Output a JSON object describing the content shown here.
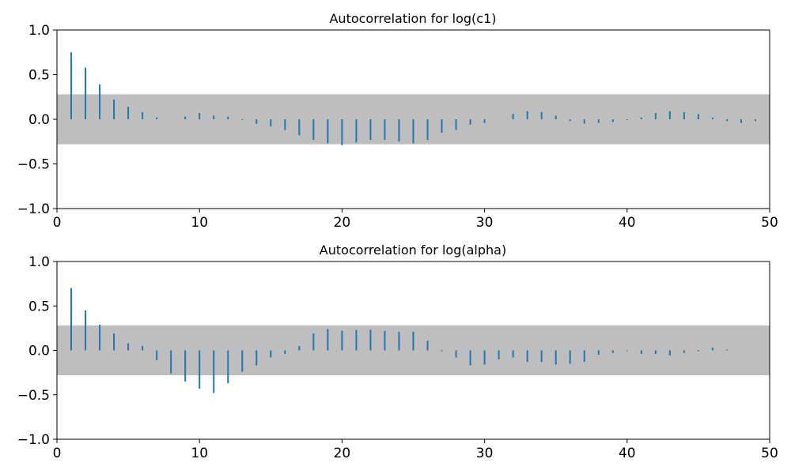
{
  "chart_data": [
    {
      "type": "bar",
      "title": "Autocorrelation for log(c1)",
      "xlabel": "",
      "ylabel": "",
      "xlim": [
        0,
        50
      ],
      "ylim": [
        -1.0,
        1.0
      ],
      "xticks": [
        0,
        10,
        20,
        30,
        40,
        50
      ],
      "xtick_labels": [
        "0",
        "10",
        "20",
        "30",
        "40",
        "50"
      ],
      "yticks": [
        1.0,
        0.5,
        0.0,
        -0.5,
        -1.0
      ],
      "ytick_labels": [
        "1.0",
        "0.5",
        "0.0",
        "−0.5",
        "−1.0"
      ],
      "confidence_band": [
        -0.28,
        0.28
      ],
      "band_color": "#bebebe",
      "bar_color": "#1f77b4",
      "grid": false,
      "x": [
        1,
        2,
        3,
        4,
        5,
        6,
        7,
        8,
        9,
        10,
        11,
        12,
        13,
        14,
        15,
        16,
        17,
        18,
        19,
        20,
        21,
        22,
        23,
        24,
        25,
        26,
        27,
        28,
        29,
        30,
        31,
        32,
        33,
        34,
        35,
        36,
        37,
        38,
        39,
        40,
        41,
        42,
        43,
        44,
        45,
        46,
        47,
        48,
        49
      ],
      "values": [
        0.75,
        0.58,
        0.39,
        0.22,
        0.14,
        0.08,
        0.02,
        0.0,
        0.03,
        0.07,
        0.04,
        0.03,
        -0.01,
        -0.05,
        -0.08,
        -0.12,
        -0.18,
        -0.23,
        -0.27,
        -0.29,
        -0.26,
        -0.23,
        -0.23,
        -0.25,
        -0.27,
        -0.23,
        -0.15,
        -0.12,
        -0.06,
        -0.04,
        0.0,
        0.06,
        0.09,
        0.08,
        0.04,
        -0.02,
        -0.05,
        -0.04,
        -0.03,
        -0.01,
        0.02,
        0.07,
        0.09,
        0.08,
        0.06,
        0.02,
        -0.02,
        -0.04,
        -0.02
      ]
    },
    {
      "type": "bar",
      "title": "Autocorrelation for log(alpha)",
      "xlabel": "",
      "ylabel": "",
      "xlim": [
        0,
        50
      ],
      "ylim": [
        -1.0,
        1.0
      ],
      "xticks": [
        0,
        10,
        20,
        30,
        40,
        50
      ],
      "xtick_labels": [
        "0",
        "10",
        "20",
        "30",
        "40",
        "50"
      ],
      "yticks": [
        1.0,
        0.5,
        0.0,
        -0.5,
        -1.0
      ],
      "ytick_labels": [
        "1.0",
        "0.5",
        "0.0",
        "−0.5",
        "−1.0"
      ],
      "confidence_band": [
        -0.28,
        0.28
      ],
      "band_color": "#bebebe",
      "bar_color": "#1f77b4",
      "grid": false,
      "x": [
        1,
        2,
        3,
        4,
        5,
        6,
        7,
        8,
        9,
        10,
        11,
        12,
        13,
        14,
        15,
        16,
        17,
        18,
        19,
        20,
        21,
        22,
        23,
        24,
        25,
        26,
        27,
        28,
        29,
        30,
        31,
        32,
        33,
        34,
        35,
        36,
        37,
        38,
        39,
        40,
        41,
        42,
        43,
        44,
        45,
        46,
        47
      ],
      "values": [
        0.7,
        0.45,
        0.29,
        0.19,
        0.08,
        0.05,
        -0.11,
        -0.26,
        -0.35,
        -0.43,
        -0.48,
        -0.37,
        -0.24,
        -0.17,
        -0.08,
        -0.04,
        0.05,
        0.19,
        0.24,
        0.22,
        0.23,
        0.23,
        0.22,
        0.21,
        0.21,
        0.11,
        -0.01,
        -0.08,
        -0.17,
        -0.16,
        -0.1,
        -0.08,
        -0.13,
        -0.13,
        -0.16,
        -0.15,
        -0.13,
        -0.05,
        -0.03,
        -0.01,
        -0.04,
        -0.04,
        -0.06,
        -0.03,
        -0.01,
        0.03,
        0.01
      ]
    }
  ]
}
